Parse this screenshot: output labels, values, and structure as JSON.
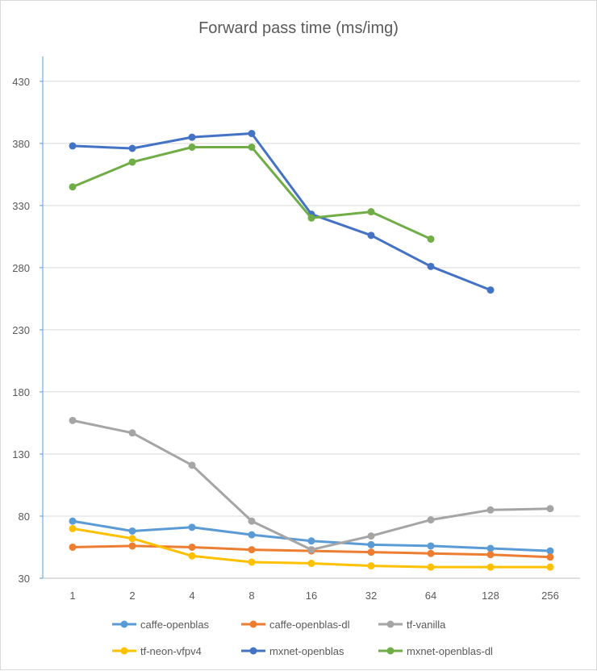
{
  "chart_data": {
    "type": "line",
    "title": "Forward pass time (ms/img)",
    "xlabel": "",
    "ylabel": "",
    "categories": [
      "1",
      "2",
      "4",
      "8",
      "16",
      "32",
      "64",
      "128",
      "256"
    ],
    "ylim": [
      30,
      450
    ],
    "yticks": [
      30,
      80,
      130,
      180,
      230,
      280,
      330,
      380,
      430
    ],
    "grid": true,
    "legend_position": "bottom",
    "series": [
      {
        "name": "caffe-openblas",
        "color": "#5b9bd5",
        "values": [
          76,
          68,
          71,
          65,
          60,
          57,
          56,
          54,
          52
        ]
      },
      {
        "name": "caffe-openblas-dl",
        "color": "#ed7d31",
        "values": [
          55,
          56,
          55,
          53,
          52,
          51,
          50,
          49,
          47
        ]
      },
      {
        "name": "tf-vanilla",
        "color": "#a5a5a5",
        "values": [
          157,
          147,
          121,
          76,
          53,
          64,
          77,
          85,
          86
        ]
      },
      {
        "name": "tf-neon-vfpv4",
        "color": "#ffc000",
        "values": [
          70,
          62,
          48,
          43,
          42,
          40,
          39,
          39,
          39
        ]
      },
      {
        "name": "mxnet-openblas",
        "color": "#4472c4",
        "values": [
          378,
          376,
          385,
          388,
          323,
          306,
          281,
          262,
          null
        ]
      },
      {
        "name": "mxnet-openblas-dl",
        "color": "#70ad47",
        "values": [
          345,
          365,
          377,
          377,
          320,
          325,
          303,
          null,
          null
        ]
      }
    ]
  }
}
